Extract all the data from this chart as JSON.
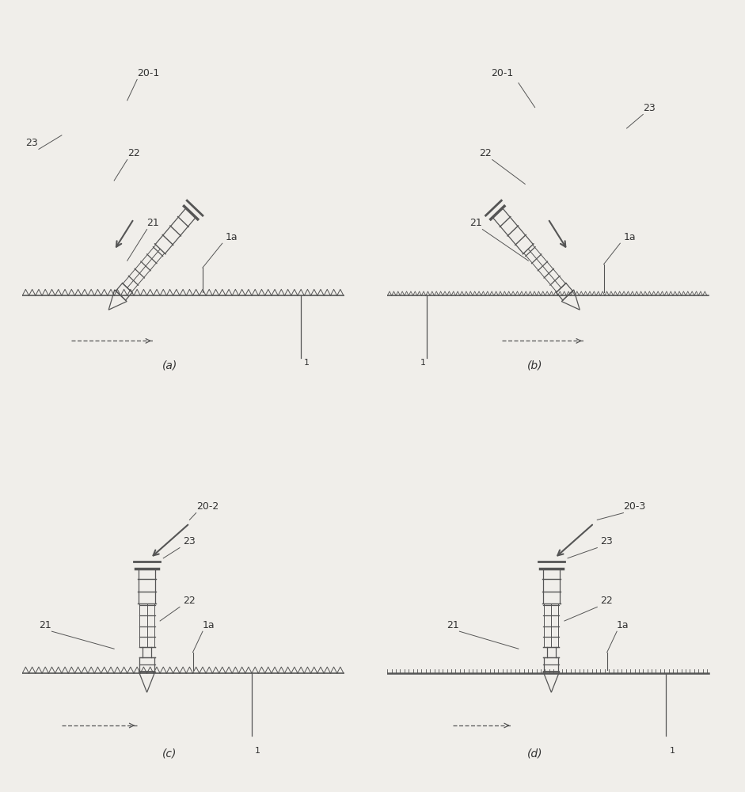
{
  "bg_color": "#f0eeea",
  "line_color": "#555555",
  "text_color": "#333333",
  "label_fontsize": 8,
  "caption_fontsize": 10,
  "fig_width": 9.41,
  "fig_height": 10.0,
  "panels": [
    "(a)",
    "(b)",
    "(c)",
    "(d)"
  ]
}
